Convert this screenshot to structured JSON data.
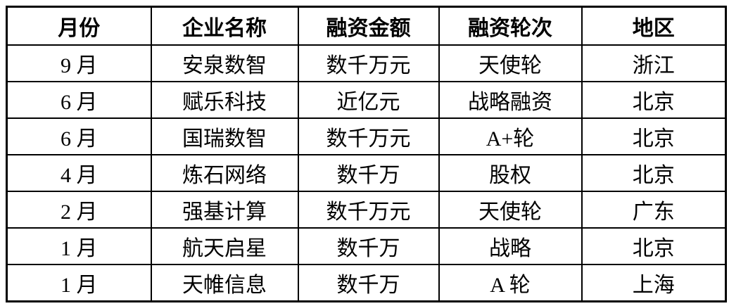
{
  "table": {
    "headers": [
      "月份",
      "企业名称",
      "融资金额",
      "融资轮次",
      "地区"
    ],
    "rows": [
      [
        "9 月",
        "安泉数智",
        "数千万元",
        "天使轮",
        "浙江"
      ],
      [
        "6 月",
        "赋乐科技",
        "近亿元",
        "战略融资",
        "北京"
      ],
      [
        "6 月",
        "国瑞数智",
        "数千万元",
        "A+轮",
        "北京"
      ],
      [
        "4 月",
        "炼石网络",
        "数千万",
        "股权",
        "北京"
      ],
      [
        "2 月",
        "强基计算",
        "数千万元",
        "天使轮",
        "广东"
      ],
      [
        "1 月",
        "航天启星",
        "数千万",
        "战略",
        "北京"
      ],
      [
        "1 月",
        "天帷信息",
        "数千万",
        "A 轮",
        "上海"
      ]
    ]
  }
}
